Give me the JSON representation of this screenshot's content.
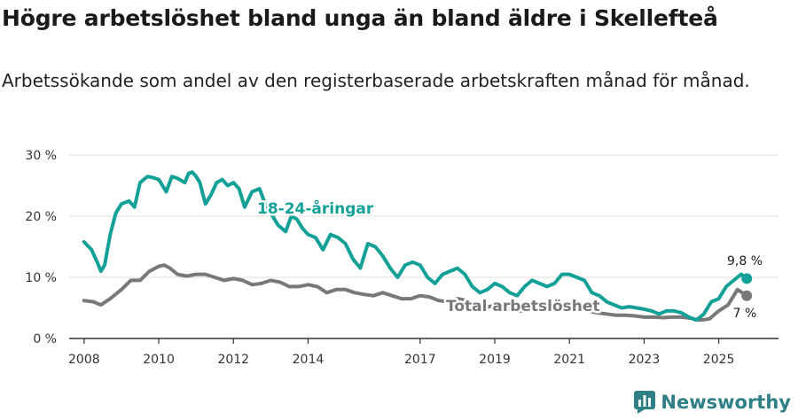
{
  "header": {
    "title": "Högre arbetslöshet bland unga än bland äldre i Skellefteå",
    "subtitle": "Arbetssökande som andel av den registerbaserade arbetskraften månad för månad."
  },
  "brand": {
    "name": "Newsworthy",
    "icon": "bar-chart-logo-icon"
  },
  "colors": {
    "youth": "#13a197",
    "total": "#787878",
    "axis": "#333333",
    "grid": "#dddddd",
    "brand": "#2f7f86"
  },
  "chart_data": {
    "type": "line",
    "title": "Högre arbetslöshet bland unga än bland äldre i Skellefteå",
    "xlabel": "",
    "ylabel": "",
    "xlim": [
      2007.6,
      2026.6
    ],
    "ylim": [
      0,
      30
    ],
    "x_ticks": [
      2008,
      2010,
      2012,
      2014,
      2017,
      2019,
      2021,
      2023,
      2025
    ],
    "y_ticks": [
      {
        "value": 0,
        "label": "0 %"
      },
      {
        "value": 10,
        "label": "10 %"
      },
      {
        "value": 20,
        "label": "20 %"
      },
      {
        "value": 30,
        "label": "30 %"
      }
    ],
    "series": [
      {
        "name": "18-24-åringar",
        "x": [
          2008.0,
          2008.2,
          2008.35,
          2008.45,
          2008.55,
          2008.7,
          2008.85,
          2009.0,
          2009.2,
          2009.35,
          2009.5,
          2009.7,
          2009.85,
          2010.0,
          2010.2,
          2010.35,
          2010.5,
          2010.7,
          2010.8,
          2010.9,
          2011.0,
          2011.1,
          2011.25,
          2011.4,
          2011.55,
          2011.7,
          2011.85,
          2012.0,
          2012.15,
          2012.3,
          2012.5,
          2012.7,
          2012.85,
          2013.0,
          2013.2,
          2013.4,
          2013.55,
          2013.7,
          2013.85,
          2014.0,
          2014.2,
          2014.4,
          2014.6,
          2014.8,
          2015.0,
          2015.2,
          2015.4,
          2015.6,
          2015.8,
          2016.0,
          2016.2,
          2016.4,
          2016.6,
          2016.8,
          2017.0,
          2017.2,
          2017.4,
          2017.6,
          2017.8,
          2018.0,
          2018.2,
          2018.4,
          2018.6,
          2018.8,
          2019.0,
          2019.2,
          2019.4,
          2019.6,
          2019.8,
          2020.0,
          2020.2,
          2020.4,
          2020.6,
          2020.8,
          2021.0,
          2021.2,
          2021.4,
          2021.6,
          2021.8,
          2022.0,
          2022.2,
          2022.4,
          2022.6,
          2022.8,
          2023.0,
          2023.2,
          2023.4,
          2023.6,
          2023.8,
          2024.0,
          2024.2,
          2024.4,
          2024.6,
          2024.8,
          2025.0,
          2025.2,
          2025.4,
          2025.6,
          2025.75
        ],
        "values": [
          15.8,
          14.5,
          12.5,
          11.0,
          12.0,
          17.0,
          20.5,
          22.0,
          22.5,
          21.5,
          25.5,
          26.5,
          26.3,
          26.0,
          24.0,
          26.5,
          26.2,
          25.5,
          27.0,
          27.2,
          26.5,
          25.5,
          22.0,
          23.5,
          25.5,
          26.0,
          25.0,
          25.5,
          24.5,
          21.5,
          24.0,
          24.5,
          22.0,
          20.5,
          18.5,
          17.5,
          20.0,
          19.5,
          18.0,
          17.0,
          16.5,
          14.5,
          17.0,
          16.5,
          15.5,
          13.0,
          11.5,
          15.5,
          15.0,
          13.5,
          11.5,
          10.0,
          12.0,
          12.5,
          12.0,
          10.0,
          9.0,
          10.5,
          11.0,
          11.5,
          10.5,
          8.5,
          7.5,
          8.0,
          9.0,
          8.5,
          7.5,
          7.0,
          8.5,
          9.5,
          9.0,
          8.5,
          9.0,
          10.5,
          10.5,
          10.0,
          9.5,
          7.5,
          7.0,
          6.0,
          5.5,
          5.0,
          5.2,
          5.0,
          4.8,
          4.5,
          4.0,
          4.5,
          4.5,
          4.2,
          3.5,
          3.0,
          4.0,
          6.0,
          6.5,
          8.5,
          9.5,
          10.5,
          9.8
        ]
      },
      {
        "name": "Total arbetslöshet",
        "x": [
          2008.0,
          2008.25,
          2008.45,
          2008.7,
          2009.0,
          2009.25,
          2009.5,
          2009.75,
          2010.0,
          2010.15,
          2010.3,
          2010.5,
          2010.75,
          2011.0,
          2011.25,
          2011.5,
          2011.75,
          2012.0,
          2012.25,
          2012.5,
          2012.75,
          2013.0,
          2013.25,
          2013.5,
          2013.75,
          2014.0,
          2014.25,
          2014.5,
          2014.75,
          2015.0,
          2015.25,
          2015.5,
          2015.75,
          2016.0,
          2016.25,
          2016.5,
          2016.75,
          2017.0,
          2017.25,
          2017.5,
          2017.75,
          2018.0,
          2018.25,
          2018.5,
          2018.75,
          2019.0,
          2019.25,
          2019.5,
          2019.75,
          2020.0,
          2020.25,
          2020.5,
          2020.75,
          2021.0,
          2021.25,
          2021.5,
          2021.75,
          2022.0,
          2022.25,
          2022.5,
          2022.75,
          2023.0,
          2023.25,
          2023.5,
          2023.75,
          2024.0,
          2024.25,
          2024.5,
          2024.75,
          2025.0,
          2025.25,
          2025.5,
          2025.75
        ],
        "values": [
          6.2,
          6.0,
          5.5,
          6.5,
          8.0,
          9.5,
          9.5,
          11.0,
          11.8,
          12.0,
          11.5,
          10.5,
          10.2,
          10.5,
          10.5,
          10.0,
          9.5,
          9.8,
          9.5,
          8.8,
          9.0,
          9.5,
          9.2,
          8.5,
          8.5,
          8.8,
          8.5,
          7.5,
          8.0,
          8.0,
          7.5,
          7.2,
          7.0,
          7.5,
          7.0,
          6.5,
          6.5,
          7.0,
          6.8,
          6.2,
          6.0,
          6.5,
          6.2,
          5.5,
          5.0,
          5.5,
          5.0,
          4.5,
          4.5,
          5.5,
          5.2,
          5.0,
          5.0,
          5.5,
          5.0,
          4.5,
          4.2,
          4.0,
          3.8,
          3.8,
          3.7,
          3.5,
          3.5,
          3.4,
          3.5,
          3.5,
          3.3,
          3.0,
          3.2,
          4.5,
          5.5,
          8.0,
          7.0
        ]
      }
    ],
    "annotations": [
      {
        "series": "18-24-åringar",
        "label": "18-24-åringar",
        "at_x": 2012.3,
        "at_y": 21.0
      },
      {
        "series": "Total arbetslöshet",
        "label": "Total arbetslöshet",
        "at_x": 2019.0,
        "at_y": 5.5
      },
      {
        "series": "18-24-åringar",
        "label": "9,8 %",
        "x": 2025.75,
        "y": 9.8
      },
      {
        "series": "Total arbetslöshet",
        "label": "7 %",
        "x": 2025.75,
        "y": 7.0
      }
    ]
  }
}
